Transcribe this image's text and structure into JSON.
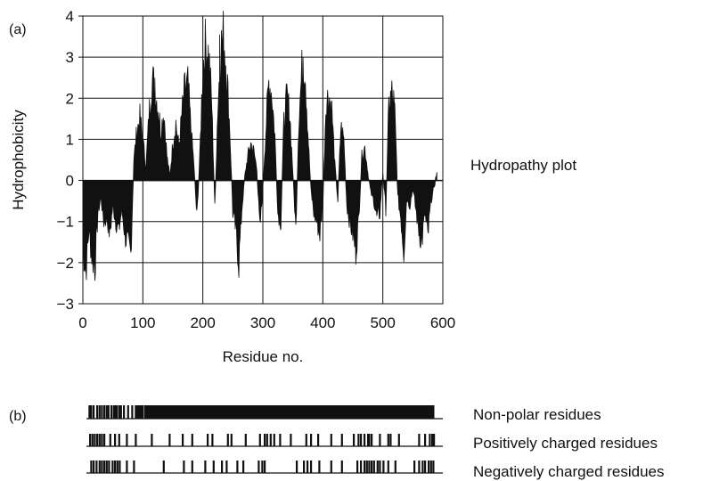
{
  "panel_a": {
    "label": "(a)",
    "side_label": "Hydropathy plot"
  },
  "panel_b": {
    "label": "(b)",
    "tracks": [
      {
        "name": "Non-polar residues"
      },
      {
        "name": "Positively charged residues"
      },
      {
        "name": "Negatively charged residues"
      }
    ]
  },
  "chart_data": [
    {
      "type": "area",
      "title": "",
      "xlabel": "Residue no.",
      "ylabel": "Hydrophobicity",
      "xlim": [
        0,
        600
      ],
      "ylim": [
        -3,
        4
      ],
      "xticks": [
        "0",
        "100",
        "200",
        "300",
        "400",
        "500",
        "600"
      ],
      "yticks": [
        "−3",
        "−2",
        "−1",
        "0",
        "1",
        "2",
        "3",
        "4"
      ],
      "grid": true,
      "fill_color": "#111111",
      "series": [
        {
          "x": [
            0,
            5,
            10,
            15,
            20,
            25,
            30,
            35,
            40,
            45,
            50,
            55,
            60,
            65,
            70,
            75,
            80,
            85,
            90,
            95,
            100,
            105,
            110,
            115,
            120,
            125,
            130,
            135,
            140,
            145,
            150,
            155,
            160,
            165,
            170,
            175,
            180,
            185,
            190,
            195,
            200,
            205,
            210,
            215,
            220,
            225,
            230,
            235,
            240,
            245,
            250,
            255,
            260,
            265,
            270,
            275,
            280,
            285,
            290,
            295,
            300,
            305,
            310,
            315,
            320,
            325,
            330,
            335,
            340,
            345,
            350,
            355,
            360,
            365,
            370,
            375,
            380,
            385,
            390,
            395,
            400,
            405,
            410,
            415,
            420,
            425,
            430,
            435,
            440,
            445,
            450,
            455,
            460,
            465,
            470,
            475,
            480,
            485,
            490,
            495,
            500,
            505,
            510,
            515,
            520,
            525,
            530,
            535,
            540,
            545,
            550,
            555,
            560,
            565,
            570,
            575,
            580,
            585,
            590
          ],
          "values": [
            -1.6,
            -2.2,
            -1.2,
            -1.8,
            -2.1,
            -0.8,
            -0.4,
            -1.0,
            -0.9,
            -1.3,
            -0.6,
            -1.0,
            -1.2,
            -0.7,
            -1.3,
            -1.6,
            -1.8,
            0.5,
            1.2,
            1.5,
            1.0,
            0.3,
            1.5,
            2.5,
            2.2,
            1.8,
            1.2,
            1.7,
            0.6,
            0.1,
            0.9,
            1.4,
            0.8,
            1.6,
            2.2,
            2.3,
            1.3,
            0.4,
            -0.9,
            0.6,
            2.8,
            3.3,
            3.0,
            1.8,
            -0.7,
            1.8,
            3.2,
            3.5,
            2.6,
            1.2,
            -0.8,
            -1.2,
            -2.0,
            -0.7,
            0.1,
            0.6,
            0.9,
            0.7,
            0.3,
            -1.2,
            -0.2,
            1.2,
            2.4,
            2.1,
            1.1,
            -0.8,
            -1.0,
            1.4,
            2.0,
            1.6,
            0.2,
            -1.2,
            1.5,
            2.6,
            2.9,
            1.2,
            -0.2,
            -0.8,
            -1.0,
            -1.3,
            -0.6,
            1.8,
            2.1,
            1.7,
            0.4,
            -0.5,
            1.3,
            1.0,
            -0.6,
            -1.0,
            -1.3,
            -1.7,
            -0.9,
            0.6,
            0.8,
            0.2,
            -0.3,
            -0.5,
            -0.9,
            -0.8,
            0.2,
            -0.7,
            1.8,
            2.1,
            1.6,
            -0.4,
            -0.9,
            -1.7,
            -0.4,
            -0.6,
            -0.2,
            -0.7,
            -1.2,
            -1.5,
            -0.8,
            -1.4,
            -0.5,
            -0.2,
            0.2
          ],
          "extra_peaks": [
            [
              120,
              2.5
            ],
            [
              228,
              3.55
            ],
            [
              367,
              3.0
            ],
            [
              518,
              2.2
            ]
          ]
        }
      ]
    },
    {
      "type": "table",
      "description_free": true,
      "xlim": [
        0,
        600
      ],
      "tracks": [
        {
          "name": "Non-polar residues",
          "positions": [
            5,
            8,
            12,
            18,
            22,
            26,
            30,
            34,
            37,
            42,
            46,
            48,
            51,
            55,
            58,
            63,
            70,
            77,
            83,
            86,
            89,
            92,
            95,
            99,
            102,
            104,
            107,
            110,
            113,
            116,
            119,
            122,
            125,
            128,
            131,
            134,
            137,
            140,
            143,
            146,
            149,
            152,
            155,
            158,
            161,
            164,
            167,
            170,
            173,
            176,
            179,
            182,
            185,
            188,
            191,
            194,
            197,
            200,
            203,
            206,
            209,
            212,
            215,
            218,
            221,
            224,
            227,
            230,
            233,
            236,
            239,
            242,
            245,
            248,
            251,
            254,
            257,
            260,
            263,
            266,
            269,
            272,
            275,
            278,
            281,
            284,
            287,
            290,
            293,
            296,
            299,
            302,
            305,
            308,
            311,
            314,
            317,
            320,
            323,
            326,
            329,
            332,
            335,
            338,
            341,
            344,
            347,
            350,
            353,
            356,
            359,
            362,
            365,
            368,
            371,
            374,
            377,
            380,
            383,
            386,
            389,
            392,
            395,
            398,
            401,
            404,
            407,
            410,
            413,
            416,
            419,
            422,
            425,
            428,
            431,
            434,
            437,
            440,
            443,
            446,
            449,
            452,
            455,
            458,
            461,
            464,
            467,
            470,
            473,
            476,
            479,
            482,
            485,
            488,
            491,
            494,
            497,
            500,
            503,
            506,
            509,
            512,
            515,
            518,
            521,
            524,
            527,
            530,
            533,
            536,
            539,
            542,
            545,
            548,
            551,
            554,
            557,
            560,
            563,
            566,
            569,
            572,
            575,
            578,
            581,
            584
          ]
        },
        {
          "name": "Positively charged residues",
          "positions": [
            6,
            10,
            14,
            18,
            22,
            26,
            30,
            40,
            48,
            55,
            68,
            83,
            110,
            140,
            162,
            178,
            204,
            212,
            238,
            244,
            268,
            292,
            300,
            304,
            310,
            316,
            326,
            344,
            370,
            378,
            390,
            412,
            430,
            450,
            458,
            462,
            468,
            474,
            476,
            480,
            494,
            508,
            512,
            526,
            560,
            570,
            578,
            582,
            585
          ]
        },
        {
          "name": "Negatively charged residues",
          "positions": [
            8,
            12,
            17,
            22,
            26,
            30,
            34,
            38,
            44,
            48,
            52,
            56,
            68,
            80,
            130,
            164,
            178,
            200,
            214,
            228,
            236,
            254,
            264,
            290,
            296,
            300,
            354,
            366,
            372,
            378,
            392,
            412,
            430,
            456,
            462,
            468,
            472,
            476,
            480,
            484,
            490,
            494,
            500,
            508,
            520,
            552,
            560,
            566,
            570,
            576,
            580,
            584
          ]
        }
      ]
    }
  ]
}
